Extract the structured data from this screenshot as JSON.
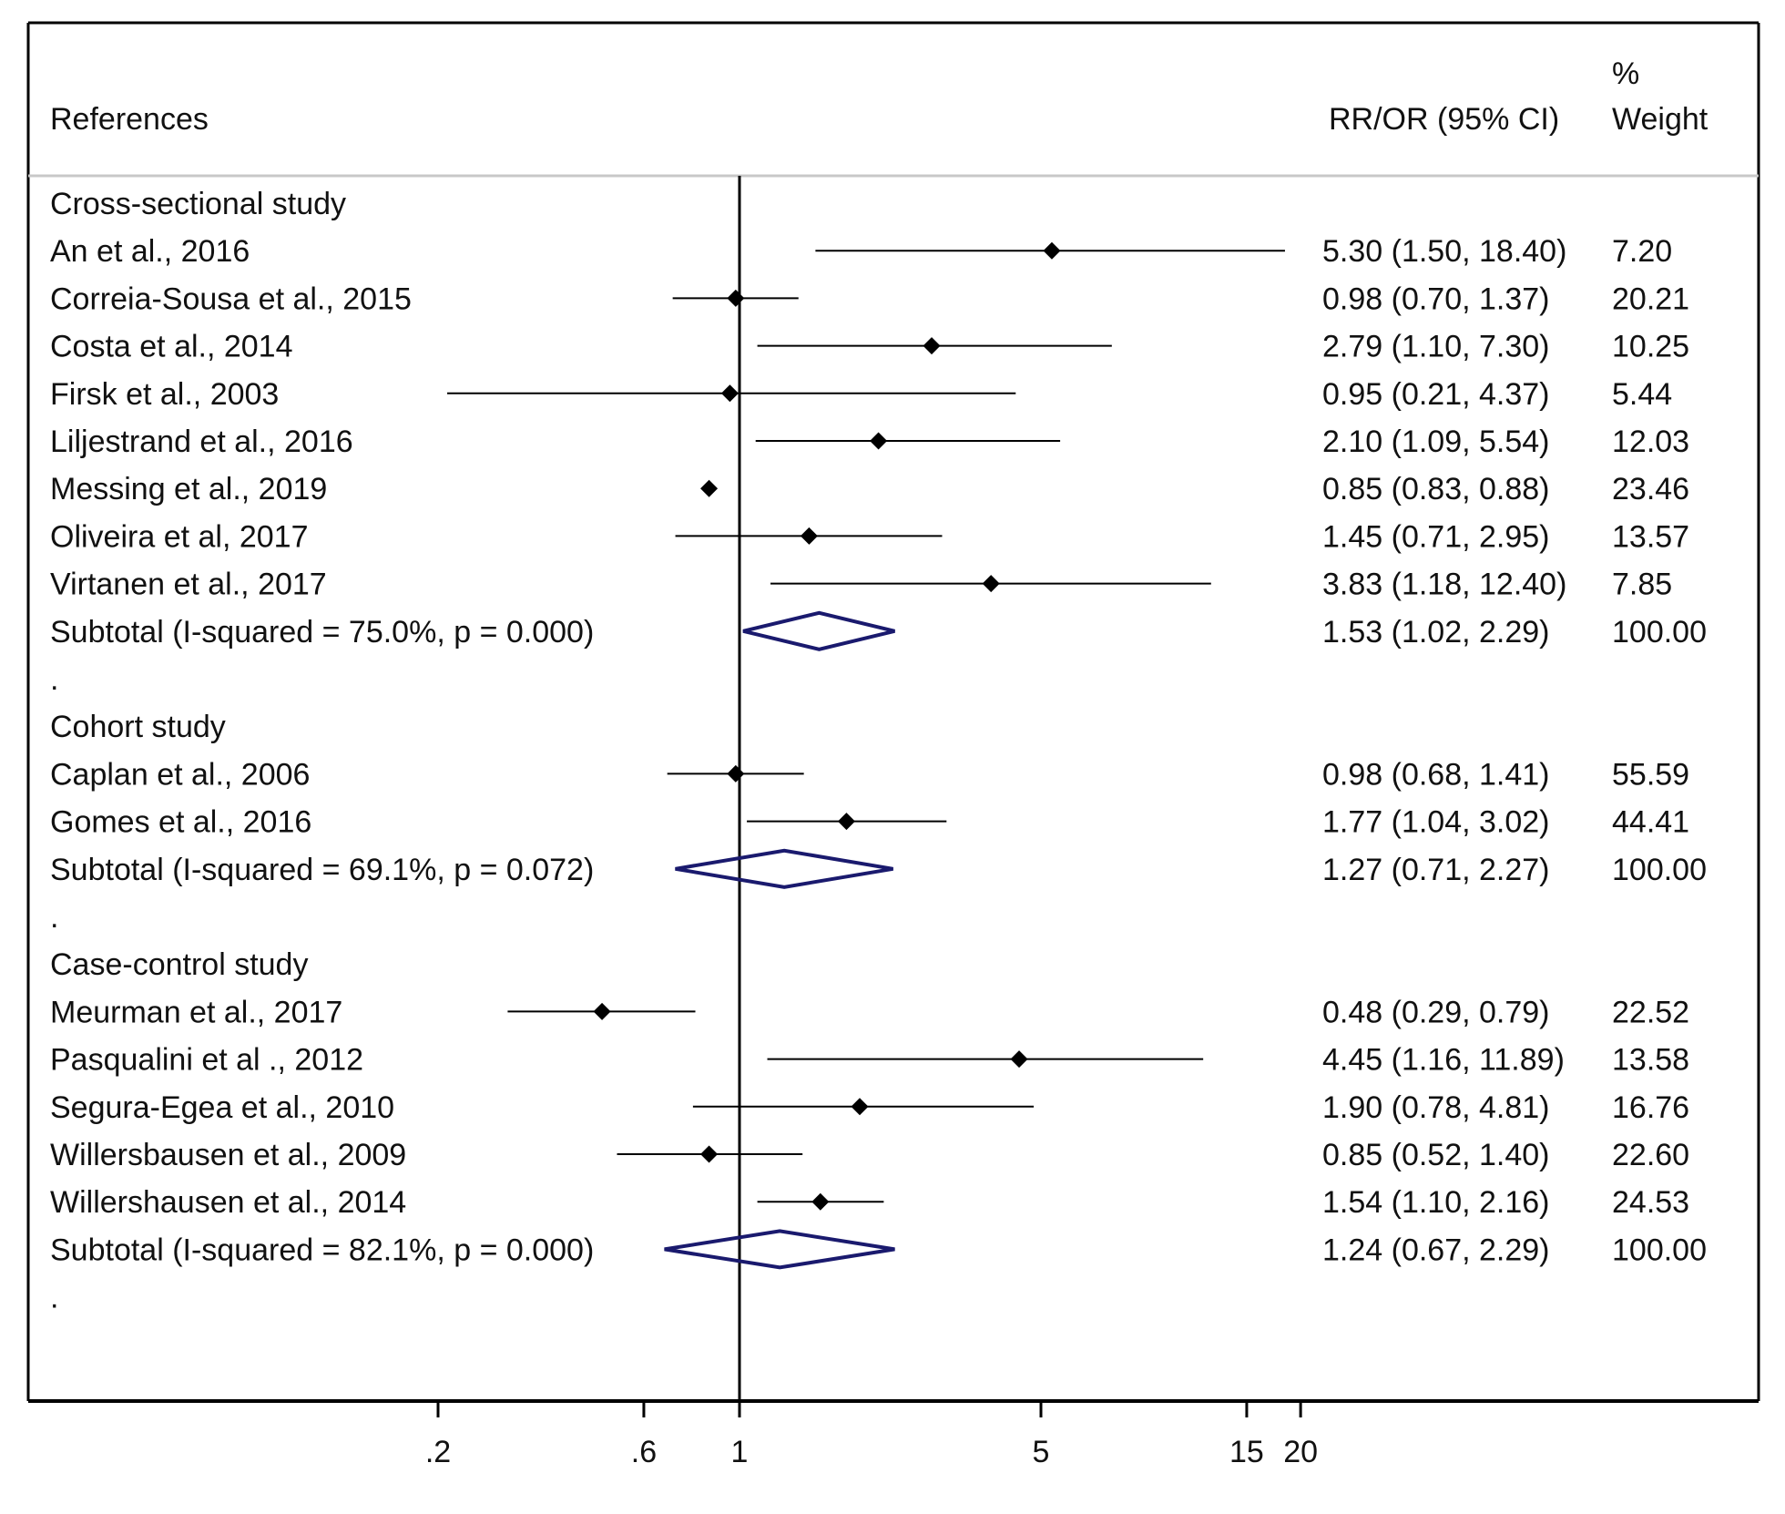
{
  "colors": {
    "text": "#111111",
    "marker": "#000000",
    "diamond": "#1a1a6e",
    "frame": "#000000",
    "header_rule": "#c8c8c8"
  },
  "chart_data": {
    "type": "forest",
    "x_scale": "log",
    "xlim": [
      0.11,
      50
    ],
    "x_ticks": [
      {
        "value": 0.2,
        "label": ".2"
      },
      {
        "value": 0.6,
        "label": ".6"
      },
      {
        "value": 1,
        "label": "1"
      },
      {
        "value": 5,
        "label": "5"
      },
      {
        "value": 15,
        "label": "15"
      },
      {
        "value": 20,
        "label": "20"
      }
    ],
    "null_line": 1,
    "columns": {
      "references": "References",
      "estimate": "RR/OR (95% CI)",
      "weight_line1": "%",
      "weight_line2": "Weight"
    },
    "groups": [
      {
        "label": "Cross-sectional study",
        "studies": [
          {
            "name": "An et al., 2016",
            "est": 5.3,
            "lo": 1.5,
            "hi": 18.4,
            "text": "5.30 (1.50, 18.40)",
            "weight": "7.20"
          },
          {
            "name": "Correia-Sousa et al., 2015",
            "est": 0.98,
            "lo": 0.7,
            "hi": 1.37,
            "text": "0.98 (0.70, 1.37)",
            "weight": "20.21"
          },
          {
            "name": "Costa et al., 2014",
            "est": 2.79,
            "lo": 1.1,
            "hi": 7.3,
            "text": "2.79 (1.10, 7.30)",
            "weight": "10.25"
          },
          {
            "name": "Firsk et al., 2003",
            "est": 0.95,
            "lo": 0.21,
            "hi": 4.37,
            "text": "0.95 (0.21, 4.37)",
            "weight": "5.44"
          },
          {
            "name": "Liljestrand et al., 2016",
            "est": 2.1,
            "lo": 1.09,
            "hi": 5.54,
            "text": "2.10 (1.09, 5.54)",
            "weight": "12.03"
          },
          {
            "name": "Messing et al., 2019",
            "est": 0.85,
            "lo": 0.83,
            "hi": 0.88,
            "text": "0.85 (0.83, 0.88)",
            "weight": "23.46"
          },
          {
            "name": "Oliveira et al, 2017",
            "est": 1.45,
            "lo": 0.71,
            "hi": 2.95,
            "text": "1.45 (0.71, 2.95)",
            "weight": "13.57"
          },
          {
            "name": "Virtanen et al., 2017",
            "est": 3.83,
            "lo": 1.18,
            "hi": 12.4,
            "text": "3.83 (1.18, 12.40)",
            "weight": "7.85"
          }
        ],
        "subtotal": {
          "label": "Subtotal  (I-squared = 75.0%, p = 0.000)",
          "est": 1.53,
          "lo": 1.02,
          "hi": 2.29,
          "text": "1.53 (1.02, 2.29)",
          "weight": "100.00"
        }
      },
      {
        "label": "Cohort study",
        "studies": [
          {
            "name": "Caplan et al., 2006",
            "est": 0.98,
            "lo": 0.68,
            "hi": 1.41,
            "text": "0.98 (0.68, 1.41)",
            "weight": "55.59"
          },
          {
            "name": "Gomes et al., 2016",
            "est": 1.77,
            "lo": 1.04,
            "hi": 3.02,
            "text": "1.77 (1.04, 3.02)",
            "weight": "44.41"
          }
        ],
        "subtotal": {
          "label": "Subtotal  (I-squared = 69.1%, p = 0.072)",
          "est": 1.27,
          "lo": 0.71,
          "hi": 2.27,
          "text": "1.27 (0.71, 2.27)",
          "weight": "100.00"
        }
      },
      {
        "label": "Case-control study",
        "studies": [
          {
            "name": "Meurman et al., 2017",
            "est": 0.48,
            "lo": 0.29,
            "hi": 0.79,
            "text": "0.48 (0.29, 0.79)",
            "weight": "22.52"
          },
          {
            "name": "Pasqualini et al ., 2012",
            "est": 4.45,
            "lo": 1.16,
            "hi": 11.89,
            "text": "4.45 (1.16, 11.89)",
            "weight": "13.58"
          },
          {
            "name": "Segura-Egea et al., 2010",
            "est": 1.9,
            "lo": 0.78,
            "hi": 4.81,
            "text": "1.90 (0.78, 4.81)",
            "weight": "16.76"
          },
          {
            "name": "Willersbausen et al., 2009",
            "est": 0.85,
            "lo": 0.52,
            "hi": 1.4,
            "text": "0.85 (0.52, 1.40)",
            "weight": "22.60"
          },
          {
            "name": "Willershausen et al., 2014",
            "est": 1.54,
            "lo": 1.1,
            "hi": 2.16,
            "text": "1.54 (1.10, 2.16)",
            "weight": "24.53"
          }
        ],
        "subtotal": {
          "label": "Subtotal  (I-squared = 82.1%, p = 0.000)",
          "est": 1.24,
          "lo": 0.67,
          "hi": 2.29,
          "text": "1.24 (0.67, 2.29)",
          "weight": "100.00"
        }
      }
    ],
    "separator_text": "."
  }
}
